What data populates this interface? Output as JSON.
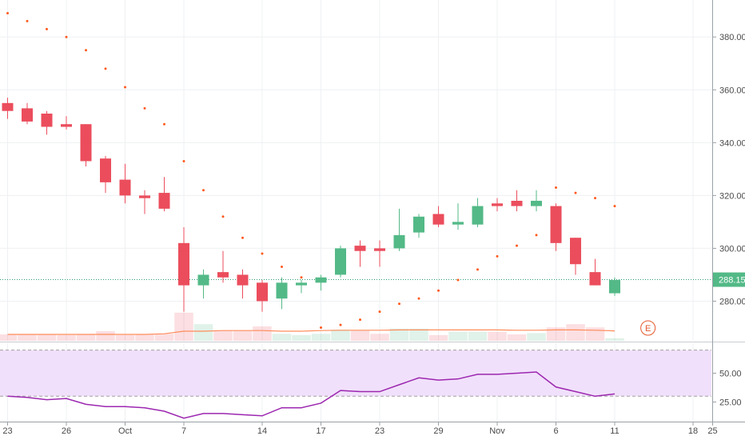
{
  "chart_data": [
    {
      "type": "candlestick",
      "title": "",
      "price_axis": {
        "ticks": [
          "380.00",
          "360.00",
          "340.00",
          "320.00",
          "300.00",
          "280.00"
        ],
        "tick_values": [
          380,
          360,
          340,
          320,
          300,
          280
        ],
        "range": [
          265,
          394
        ]
      },
      "time_axis": {
        "labels": [
          {
            "label": "23",
            "bar": 0
          },
          {
            "label": "26",
            "bar": 3
          },
          {
            "label": "Oct",
            "bar": 6
          },
          {
            "label": "7",
            "bar": 9
          },
          {
            "label": "14",
            "bar": 13
          },
          {
            "label": "17",
            "bar": 16
          },
          {
            "label": "23",
            "bar": 19
          },
          {
            "label": "29",
            "bar": 22
          },
          {
            "label": "Nov",
            "bar": 25
          },
          {
            "label": "6",
            "bar": 28
          },
          {
            "label": "11",
            "bar": 31
          },
          {
            "label": "18",
            "bar": 35
          },
          {
            "label": "25",
            "bar": 36
          }
        ]
      },
      "last_price_label": "288.15",
      "last_price": 288.15,
      "up_color": "#53b987",
      "down_color": "#eb4d5c",
      "sar_color": "#ff5a1f",
      "candles": [
        {
          "o": 355,
          "h": 357,
          "l": 349,
          "c": 352
        },
        {
          "o": 353,
          "h": 355,
          "l": 347,
          "c": 348
        },
        {
          "o": 351,
          "h": 352,
          "l": 343,
          "c": 346
        },
        {
          "o": 347,
          "h": 350,
          "l": 345,
          "c": 346
        },
        {
          "o": 347,
          "h": 347,
          "l": 331,
          "c": 333
        },
        {
          "o": 334,
          "h": 335,
          "l": 321,
          "c": 325
        },
        {
          "o": 326,
          "h": 332,
          "l": 317,
          "c": 320
        },
        {
          "o": 320,
          "h": 322,
          "l": 313,
          "c": 319
        },
        {
          "o": 321,
          "h": 327,
          "l": 314,
          "c": 315
        },
        {
          "o": 302,
          "h": 308,
          "l": 276,
          "c": 286
        },
        {
          "o": 286,
          "h": 292,
          "l": 281,
          "c": 290
        },
        {
          "o": 291,
          "h": 299,
          "l": 287,
          "c": 289
        },
        {
          "o": 290,
          "h": 292,
          "l": 281,
          "c": 286
        },
        {
          "o": 287,
          "h": 288,
          "l": 276,
          "c": 280
        },
        {
          "o": 281,
          "h": 289,
          "l": 277,
          "c": 287
        },
        {
          "o": 286,
          "h": 288,
          "l": 283,
          "c": 287
        },
        {
          "o": 287,
          "h": 290,
          "l": 284,
          "c": 289
        },
        {
          "o": 290,
          "h": 301,
          "l": 289,
          "c": 300
        },
        {
          "o": 301,
          "h": 303,
          "l": 293,
          "c": 299
        },
        {
          "o": 300,
          "h": 303,
          "l": 293,
          "c": 299
        },
        {
          "o": 300,
          "h": 315,
          "l": 299,
          "c": 305
        },
        {
          "o": 306,
          "h": 313,
          "l": 304,
          "c": 312
        },
        {
          "o": 313,
          "h": 316,
          "l": 308,
          "c": 309
        },
        {
          "o": 309,
          "h": 317,
          "l": 307,
          "c": 310
        },
        {
          "o": 309,
          "h": 319,
          "l": 308,
          "c": 316
        },
        {
          "o": 317,
          "h": 319,
          "l": 314,
          "c": 316
        },
        {
          "o": 318,
          "h": 322,
          "l": 314,
          "c": 316
        },
        {
          "o": 316,
          "h": 322,
          "l": 314,
          "c": 318
        },
        {
          "o": 316,
          "h": 317,
          "l": 299,
          "c": 302
        },
        {
          "o": 304,
          "h": 304,
          "l": 290,
          "c": 294
        },
        {
          "o": 291,
          "h": 296,
          "l": 286,
          "c": 286
        },
        {
          "o": 283,
          "h": 289,
          "l": 282,
          "c": 288
        }
      ],
      "parabolic_sar": [
        {
          "bar": 0,
          "v": 389
        },
        {
          "bar": 1,
          "v": 386
        },
        {
          "bar": 2,
          "v": 383
        },
        {
          "bar": 3,
          "v": 380
        },
        {
          "bar": 4,
          "v": 375
        },
        {
          "bar": 5,
          "v": 368
        },
        {
          "bar": 6,
          "v": 361
        },
        {
          "bar": 7,
          "v": 353
        },
        {
          "bar": 8,
          "v": 347
        },
        {
          "bar": 9,
          "v": 333
        },
        {
          "bar": 10,
          "v": 322
        },
        {
          "bar": 11,
          "v": 312
        },
        {
          "bar": 12,
          "v": 304
        },
        {
          "bar": 13,
          "v": 298
        },
        {
          "bar": 14,
          "v": 293
        },
        {
          "bar": 15,
          "v": 289
        },
        {
          "bar": 16,
          "v": 270
        },
        {
          "bar": 17,
          "v": 271
        },
        {
          "bar": 18,
          "v": 273
        },
        {
          "bar": 19,
          "v": 276
        },
        {
          "bar": 20,
          "v": 279
        },
        {
          "bar": 21,
          "v": 281
        },
        {
          "bar": 22,
          "v": 284
        },
        {
          "bar": 23,
          "v": 288
        },
        {
          "bar": 24,
          "v": 292
        },
        {
          "bar": 25,
          "v": 297
        },
        {
          "bar": 26,
          "v": 301
        },
        {
          "bar": 27,
          "v": 305
        },
        {
          "bar": 28,
          "v": 323
        },
        {
          "bar": 29,
          "v": 321
        },
        {
          "bar": 30,
          "v": 319
        },
        {
          "bar": 31,
          "v": 316
        }
      ],
      "volume": [
        0.2,
        0.2,
        0.2,
        0.18,
        0.2,
        0.3,
        0.18,
        0.2,
        0.22,
        0.88,
        0.52,
        0.32,
        0.32,
        0.45,
        0.22,
        0.18,
        0.22,
        0.35,
        0.32,
        0.22,
        0.38,
        0.38,
        0.18,
        0.28,
        0.28,
        0.28,
        0.2,
        0.24,
        0.42,
        0.52,
        0.42,
        0.08
      ],
      "volume_ma": [
        0.2,
        0.2,
        0.2,
        0.2,
        0.2,
        0.2,
        0.2,
        0.2,
        0.22,
        0.3,
        0.3,
        0.32,
        0.32,
        0.32,
        0.3,
        0.3,
        0.32,
        0.33,
        0.33,
        0.33,
        0.34,
        0.34,
        0.34,
        0.34,
        0.34,
        0.34,
        0.33,
        0.33,
        0.34,
        0.34,
        0.33,
        0.31
      ],
      "event_marker": "E"
    },
    {
      "type": "line",
      "title": "",
      "y_ticks": [
        "50.00",
        "25.00"
      ],
      "y_tick_values": [
        50,
        25
      ],
      "range": [
        8,
        76
      ],
      "band": [
        30,
        70
      ],
      "line_color": "#9c27b0",
      "band_color": "#f1e0fb",
      "values": [
        30,
        29,
        27,
        28,
        23,
        21,
        21,
        20,
        17,
        11,
        15,
        15,
        14,
        13,
        20,
        20,
        24,
        35,
        34,
        34,
        40,
        46,
        44,
        45,
        49,
        49,
        50,
        51,
        38,
        34,
        30,
        32
      ]
    }
  ]
}
